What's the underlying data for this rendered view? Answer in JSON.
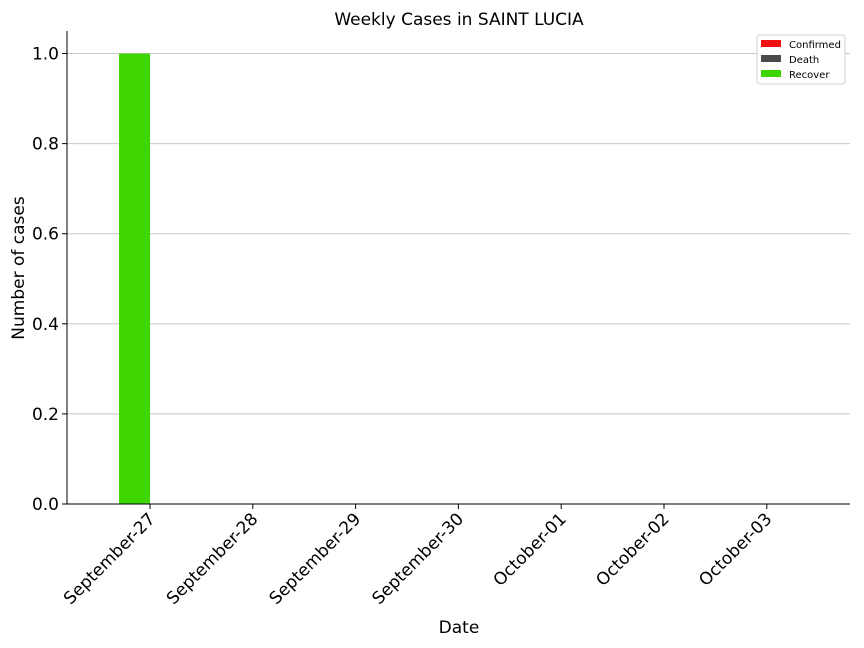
{
  "chart_data": {
    "type": "bar",
    "title": "Weekly Cases in SAINT LUCIA",
    "xlabel": "Date",
    "ylabel": "Number of cases",
    "categories": [
      "September-27",
      "September-28",
      "September-29",
      "September-30",
      "October-01",
      "October-02",
      "October-03"
    ],
    "series": [
      {
        "name": "Confirmed",
        "color": "#ee1111",
        "values": [
          0,
          0,
          0,
          0,
          0,
          0,
          0
        ]
      },
      {
        "name": "Death",
        "color": "#4a4a4a",
        "values": [
          0,
          0,
          0,
          0,
          0,
          0,
          0
        ]
      },
      {
        "name": "Recover",
        "color": "#3dd600",
        "values": [
          1,
          0,
          0,
          0,
          0,
          0,
          0
        ]
      }
    ],
    "ylim": [
      0,
      1.05
    ],
    "yticks": [
      "0.0",
      "0.2",
      "0.4",
      "0.6",
      "0.8",
      "1.0"
    ],
    "grid": "horizontal",
    "legend_position": "top-right"
  }
}
